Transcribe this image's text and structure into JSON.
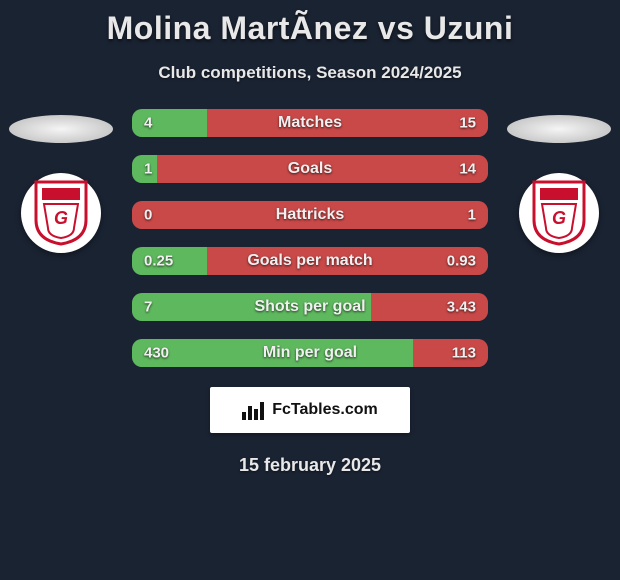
{
  "title": "Molina MartÃ­nez vs Uzuni",
  "subtitle": "Club competitions, Season 2024/2025",
  "date": "15 february 2025",
  "footer_brand": "FcTables.com",
  "colors": {
    "background": "#1a2332",
    "left_bar": "#5eb85e",
    "right_bar": "#c94848",
    "bar_track": "#5a6472",
    "text": "#e8e8e8",
    "badge_primary": "#c8102e",
    "badge_bg": "#ffffff"
  },
  "stats": [
    {
      "label": "Matches",
      "left_value": "4",
      "right_value": "15",
      "left_pct": 21,
      "right_pct": 79
    },
    {
      "label": "Goals",
      "left_value": "1",
      "right_value": "14",
      "left_pct": 7,
      "right_pct": 93
    },
    {
      "label": "Hattricks",
      "left_value": "0",
      "right_value": "1",
      "left_pct": 0,
      "right_pct": 100
    },
    {
      "label": "Goals per match",
      "left_value": "0.25",
      "right_value": "0.93",
      "left_pct": 21,
      "right_pct": 79
    },
    {
      "label": "Shots per goal",
      "left_value": "7",
      "right_value": "3.43",
      "left_pct": 67,
      "right_pct": 33
    },
    {
      "label": "Min per goal",
      "left_value": "430",
      "right_value": "113",
      "left_pct": 79,
      "right_pct": 21
    }
  ],
  "typography": {
    "title_fontsize": 32,
    "subtitle_fontsize": 17,
    "bar_label_fontsize": 16,
    "bar_value_fontsize": 15,
    "date_fontsize": 18
  }
}
